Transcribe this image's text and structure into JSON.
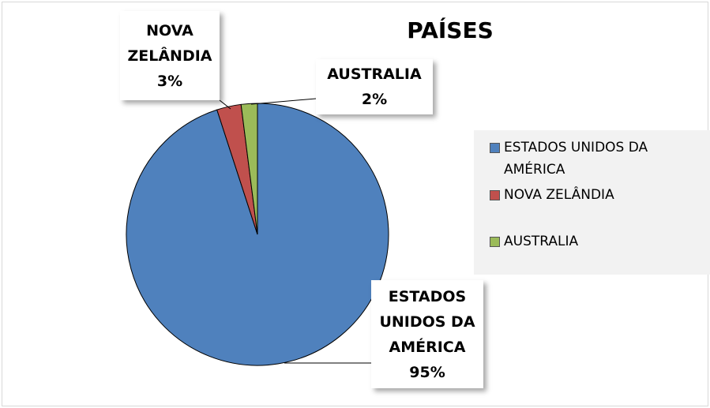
{
  "chart_data": {
    "type": "pie",
    "title": "PAÍSES",
    "categories": [
      "ESTADOS UNIDOS DA AMÉRICA",
      "NOVA ZELÂNDIA",
      "AUSTRALIA"
    ],
    "values": [
      95,
      3,
      2
    ],
    "value_labels": [
      "95%",
      "3%",
      "2%"
    ],
    "colors": [
      "#4f81bd",
      "#c0504d",
      "#9bbb59"
    ],
    "legend": "right"
  }
}
